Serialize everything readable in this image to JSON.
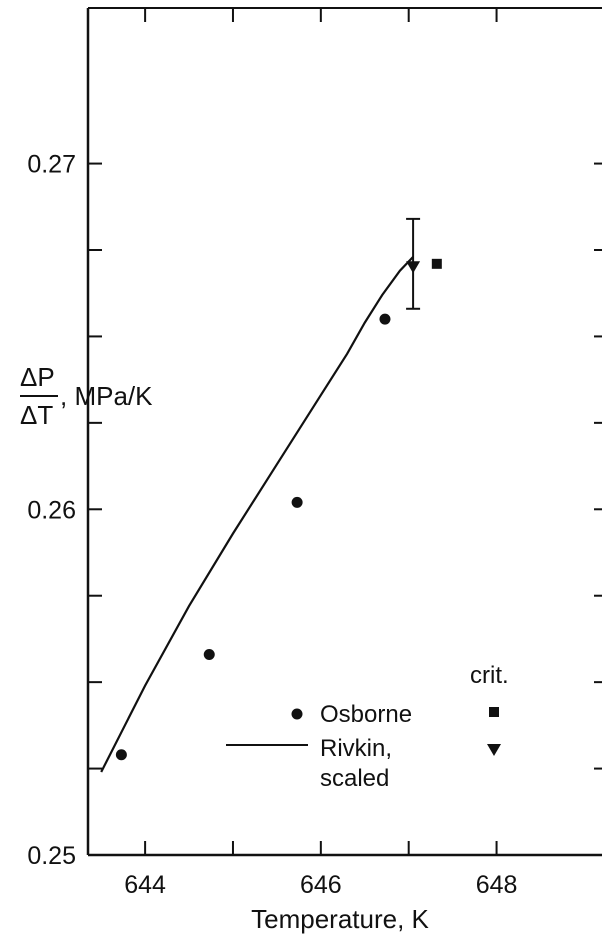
{
  "chart_data": {
    "type": "scatter",
    "xlabel": "Temperature, K",
    "ylabel": {
      "numerator": "ΔP",
      "denominator": "ΔT",
      "unit": ", MPa/K"
    },
    "xlim": [
      643.35,
      649.2
    ],
    "ylim": [
      0.25,
      0.2745
    ],
    "xticks": [
      644,
      645,
      646,
      647,
      648
    ],
    "xtick_labels": [
      "644",
      "",
      "646",
      "",
      "648"
    ],
    "yticks": [
      0.25,
      0.2525,
      0.255,
      0.2575,
      0.26,
      0.2625,
      0.265,
      0.2675,
      0.27
    ],
    "ytick_labels": [
      "0.25",
      "",
      "",
      "",
      "0.26",
      "",
      "",
      "",
      "0.27"
    ],
    "series": [
      {
        "name": "Osborne",
        "kind": "scatter",
        "marker": "circle",
        "x": [
          643.73,
          644.73,
          645.73,
          646.73
        ],
        "y": [
          0.2529,
          0.2558,
          0.2602,
          0.2655
        ]
      },
      {
        "name": "Rivkin, scaled",
        "kind": "line",
        "x": [
          643.5,
          644.0,
          644.5,
          645.0,
          645.5,
          646.0,
          646.3,
          646.5,
          646.7,
          646.9,
          647.05
        ],
        "y": [
          0.2524,
          0.2549,
          0.2572,
          0.2593,
          0.2613,
          0.2633,
          0.2645,
          0.2654,
          0.2662,
          0.2669,
          0.2673
        ]
      },
      {
        "name": "crit. (Osborne)",
        "kind": "scatter",
        "marker": "square",
        "x": [
          647.32
        ],
        "y": [
          0.2671
        ]
      },
      {
        "name": "crit. (Rivkin, scaled)",
        "kind": "scatter",
        "marker": "triangle-down",
        "x": [
          647.05
        ],
        "y": [
          0.267
        ],
        "error": {
          "low": 0.2658,
          "high": 0.2684
        }
      }
    ],
    "legend": {
      "position": "bottom-right",
      "crit_header": "crit.",
      "osborne_label": "Osborne",
      "rivkin_label_line1": "Rivkin,",
      "rivkin_label_line2": "scaled"
    },
    "grid": false
  }
}
